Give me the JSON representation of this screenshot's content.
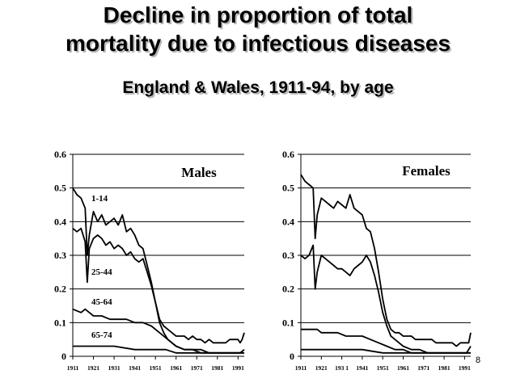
{
  "slide": {
    "title_line_1": "Decline in proportion of total",
    "title_line_2": "mortality due to infectious diseases",
    "subtitle": "England & Wales, 1911-94, by age",
    "page_number": "8"
  },
  "chart_data": [
    {
      "type": "line",
      "title": "Males",
      "xlabel": "",
      "ylabel": "",
      "xlim": [
        1911,
        1994
      ],
      "ylim": [
        0,
        0.6
      ],
      "grid": true,
      "y_ticks": [
        "0",
        "0.1",
        "0.2",
        "0.3",
        "0.4",
        "0.5",
        "0.6"
      ],
      "x_ticks": [
        "1911",
        "1921",
        "1931",
        "1941",
        "1951",
        "1961",
        "1971",
        "1981",
        "1991"
      ],
      "series": [
        {
          "name": "1-14",
          "x": [
            1911,
            1913,
            1915,
            1917,
            1918,
            1919,
            1921,
            1923,
            1925,
            1927,
            1929,
            1931,
            1933,
            1935,
            1937,
            1939,
            1941,
            1943,
            1945,
            1947,
            1949,
            1951,
            1953,
            1955,
            1957,
            1959,
            1961,
            1963,
            1965,
            1967,
            1969,
            1971,
            1973,
            1975,
            1977,
            1979,
            1981,
            1983,
            1985,
            1987,
            1989,
            1991,
            1992,
            1993,
            1994
          ],
          "values": [
            0.5,
            0.48,
            0.47,
            0.44,
            0.3,
            0.36,
            0.43,
            0.4,
            0.42,
            0.39,
            0.4,
            0.41,
            0.39,
            0.42,
            0.37,
            0.38,
            0.36,
            0.33,
            0.32,
            0.27,
            0.22,
            0.16,
            0.11,
            0.09,
            0.08,
            0.07,
            0.06,
            0.06,
            0.06,
            0.05,
            0.06,
            0.05,
            0.05,
            0.04,
            0.05,
            0.04,
            0.04,
            0.04,
            0.04,
            0.05,
            0.05,
            0.05,
            0.04,
            0.05,
            0.07
          ]
        },
        {
          "name": "25-44",
          "x": [
            1911,
            1913,
            1915,
            1917,
            1918,
            1919,
            1921,
            1923,
            1925,
            1927,
            1929,
            1931,
            1933,
            1935,
            1937,
            1939,
            1941,
            1943,
            1945,
            1947,
            1949,
            1951,
            1953,
            1955,
            1957,
            1959,
            1961,
            1965,
            1969,
            1973,
            1977,
            1981,
            1985,
            1989,
            1992,
            1994
          ],
          "values": [
            0.38,
            0.37,
            0.38,
            0.34,
            0.22,
            0.32,
            0.35,
            0.36,
            0.35,
            0.33,
            0.34,
            0.32,
            0.33,
            0.32,
            0.3,
            0.31,
            0.29,
            0.28,
            0.29,
            0.25,
            0.21,
            0.16,
            0.1,
            0.07,
            0.05,
            0.04,
            0.03,
            0.02,
            0.02,
            0.02,
            0.01,
            0.01,
            0.01,
            0.01,
            0.01,
            0.02
          ]
        },
        {
          "name": "45-64",
          "x": [
            1911,
            1915,
            1917,
            1919,
            1921,
            1925,
            1929,
            1933,
            1937,
            1941,
            1945,
            1949,
            1953,
            1957,
            1961,
            1965,
            1969,
            1973,
            1977,
            1981,
            1985,
            1989,
            1992,
            1994
          ],
          "values": [
            0.14,
            0.13,
            0.14,
            0.13,
            0.12,
            0.12,
            0.11,
            0.11,
            0.11,
            0.1,
            0.1,
            0.09,
            0.07,
            0.05,
            0.03,
            0.02,
            0.02,
            0.01,
            0.01,
            0.01,
            0.01,
            0.01,
            0.01,
            0.01
          ]
        },
        {
          "name": "65-74",
          "x": [
            1911,
            1915,
            1921,
            1931,
            1941,
            1951,
            1956,
            1961,
            1971,
            1981,
            1991,
            1994
          ],
          "values": [
            0.03,
            0.03,
            0.03,
            0.03,
            0.02,
            0.02,
            0.02,
            0.01,
            0.01,
            0.01,
            0.01,
            0.01
          ]
        }
      ]
    },
    {
      "type": "line",
      "title": "Females",
      "xlabel": "",
      "ylabel": "",
      "xlim": [
        1911,
        1994
      ],
      "ylim": [
        0,
        0.6
      ],
      "grid": true,
      "y_ticks": [
        "0",
        "0.1",
        "0.2",
        "0.3",
        "0.4",
        "0.5",
        "0.6"
      ],
      "x_ticks": [
        "1911",
        "1921",
        "193 1",
        "1941",
        "1951",
        "1961",
        "1971",
        "1981",
        "1991"
      ],
      "series": [
        {
          "name": "",
          "x": [
            1911,
            1913,
            1915,
            1917,
            1918,
            1919,
            1921,
            1923,
            1925,
            1927,
            1929,
            1931,
            1933,
            1935,
            1937,
            1939,
            1941,
            1943,
            1945,
            1947,
            1949,
            1951,
            1953,
            1955,
            1957,
            1959,
            1961,
            1963,
            1965,
            1967,
            1969,
            1971,
            1973,
            1975,
            1977,
            1979,
            1981,
            1983,
            1985,
            1987,
            1989,
            1991,
            1993,
            1994
          ],
          "values": [
            0.54,
            0.52,
            0.51,
            0.5,
            0.35,
            0.42,
            0.47,
            0.46,
            0.45,
            0.44,
            0.46,
            0.45,
            0.44,
            0.48,
            0.44,
            0.43,
            0.42,
            0.38,
            0.37,
            0.32,
            0.25,
            0.17,
            0.11,
            0.08,
            0.07,
            0.07,
            0.06,
            0.06,
            0.06,
            0.05,
            0.05,
            0.05,
            0.05,
            0.05,
            0.04,
            0.04,
            0.04,
            0.04,
            0.04,
            0.03,
            0.04,
            0.04,
            0.04,
            0.07
          ]
        },
        {
          "name": "",
          "x": [
            1911,
            1913,
            1915,
            1917,
            1918,
            1919,
            1921,
            1923,
            1925,
            1927,
            1929,
            1931,
            1933,
            1935,
            1937,
            1939,
            1941,
            1943,
            1945,
            1947,
            1949,
            1951,
            1953,
            1955,
            1957,
            1959,
            1961,
            1965,
            1969,
            1973,
            1977,
            1981,
            1985,
            1989,
            1992,
            1994
          ],
          "values": [
            0.3,
            0.29,
            0.3,
            0.33,
            0.2,
            0.25,
            0.3,
            0.29,
            0.28,
            0.27,
            0.26,
            0.26,
            0.25,
            0.24,
            0.26,
            0.27,
            0.28,
            0.3,
            0.28,
            0.24,
            0.19,
            0.13,
            0.09,
            0.06,
            0.05,
            0.04,
            0.03,
            0.02,
            0.02,
            0.01,
            0.01,
            0.01,
            0.01,
            0.01,
            0.01,
            0.03
          ]
        },
        {
          "name": "",
          "x": [
            1911,
            1915,
            1919,
            1921,
            1925,
            1929,
            1933,
            1937,
            1941,
            1945,
            1949,
            1953,
            1957,
            1961,
            1965,
            1969,
            1973,
            1977,
            1981,
            1985,
            1989,
            1992,
            1994
          ],
          "values": [
            0.08,
            0.08,
            0.08,
            0.07,
            0.07,
            0.07,
            0.06,
            0.06,
            0.06,
            0.05,
            0.04,
            0.03,
            0.02,
            0.02,
            0.01,
            0.01,
            0.01,
            0.01,
            0.01,
            0.01,
            0.01,
            0.01,
            0.01
          ]
        },
        {
          "name": "",
          "x": [
            1911,
            1915,
            1921,
            1931,
            1941,
            1951,
            1956,
            1961,
            1971,
            1981,
            1991,
            1994
          ],
          "values": [
            0.02,
            0.02,
            0.02,
            0.02,
            0.02,
            0.01,
            0.01,
            0.01,
            0.01,
            0.01,
            0.01,
            0.01
          ]
        }
      ]
    }
  ]
}
